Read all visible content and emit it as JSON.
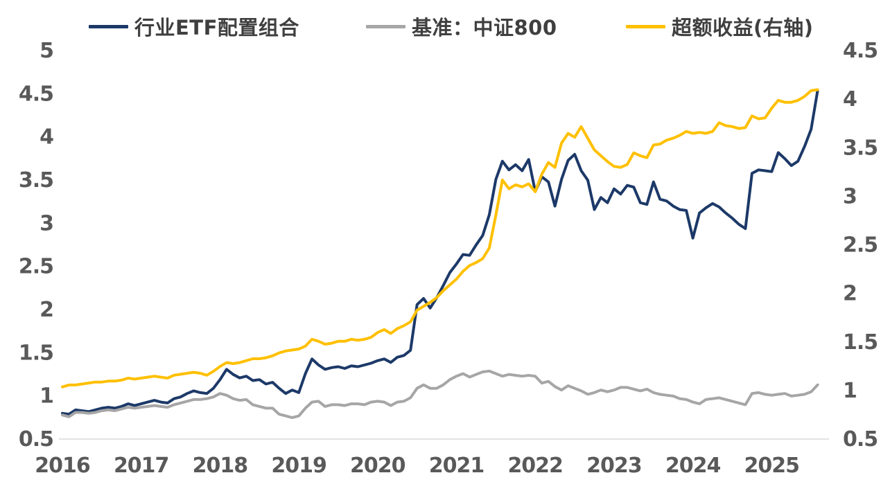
{
  "page": {
    "background": "#ffffff"
  },
  "chart_data": {
    "type": "line",
    "title": "",
    "x_unit": "month",
    "x_start": "2016-01",
    "x_end": "2025-08",
    "grid": false,
    "legend_position": "top",
    "x_axis": {
      "tick_labels": [
        "2016",
        "2017",
        "2018",
        "2019",
        "2020",
        "2021",
        "2022",
        "2023",
        "2024",
        "2025"
      ]
    },
    "left_axis": {
      "range": [
        0.5,
        5
      ],
      "tick_labels": [
        "5",
        "4.5",
        "4",
        "3.5",
        "3",
        "2.5",
        "2",
        "1.5",
        "1",
        "0.5"
      ]
    },
    "right_axis": {
      "range": [
        0.5,
        4.5
      ],
      "tick_labels": [
        "4.5",
        "4",
        "3.5",
        "3",
        "2.5",
        "2",
        "1.5",
        "1",
        "0.5"
      ]
    },
    "axis_line_color": "#d9d9d9",
    "tick_color": "#595959",
    "series": [
      {
        "name": "行业ETF配置组合",
        "axis": "left",
        "color": "#1c3968",
        "values": [
          0.79,
          0.78,
          0.83,
          0.82,
          0.81,
          0.83,
          0.85,
          0.86,
          0.85,
          0.87,
          0.9,
          0.88,
          0.9,
          0.92,
          0.94,
          0.92,
          0.91,
          0.96,
          0.98,
          1.02,
          1.05,
          1.03,
          1.02,
          1.08,
          1.18,
          1.3,
          1.24,
          1.2,
          1.22,
          1.17,
          1.18,
          1.13,
          1.15,
          1.08,
          1.02,
          1.06,
          1.03,
          1.25,
          1.42,
          1.35,
          1.3,
          1.32,
          1.33,
          1.31,
          1.34,
          1.33,
          1.35,
          1.37,
          1.4,
          1.42,
          1.38,
          1.44,
          1.46,
          1.52,
          2.05,
          2.12,
          2.01,
          2.13,
          2.27,
          2.42,
          2.52,
          2.63,
          2.62,
          2.74,
          2.85,
          3.09,
          3.5,
          3.71,
          3.61,
          3.67,
          3.6,
          3.73,
          3.36,
          3.53,
          3.47,
          3.19,
          3.5,
          3.72,
          3.79,
          3.6,
          3.49,
          3.15,
          3.29,
          3.23,
          3.39,
          3.33,
          3.43,
          3.41,
          3.23,
          3.21,
          3.47,
          3.27,
          3.25,
          3.19,
          3.15,
          3.14,
          2.82,
          3.11,
          3.17,
          3.22,
          3.18,
          3.11,
          3.05,
          2.98,
          2.93,
          3.57,
          3.61,
          3.6,
          3.59,
          3.81,
          3.74,
          3.66,
          3.71,
          3.88,
          4.08,
          4.53
        ]
      },
      {
        "name": "基准：中证800",
        "axis": "left",
        "color": "#a6a6a6",
        "values": [
          0.77,
          0.75,
          0.8,
          0.8,
          0.79,
          0.8,
          0.82,
          0.83,
          0.82,
          0.84,
          0.86,
          0.85,
          0.86,
          0.87,
          0.88,
          0.87,
          0.86,
          0.89,
          0.91,
          0.93,
          0.95,
          0.95,
          0.96,
          0.98,
          1.02,
          1.0,
          0.96,
          0.94,
          0.95,
          0.89,
          0.87,
          0.85,
          0.85,
          0.78,
          0.76,
          0.74,
          0.76,
          0.85,
          0.92,
          0.93,
          0.87,
          0.89,
          0.89,
          0.88,
          0.9,
          0.9,
          0.89,
          0.92,
          0.93,
          0.92,
          0.88,
          0.92,
          0.93,
          0.97,
          1.08,
          1.12,
          1.08,
          1.08,
          1.12,
          1.18,
          1.22,
          1.25,
          1.21,
          1.24,
          1.27,
          1.28,
          1.25,
          1.22,
          1.24,
          1.23,
          1.22,
          1.23,
          1.22,
          1.14,
          1.16,
          1.1,
          1.06,
          1.11,
          1.08,
          1.05,
          1.01,
          1.03,
          1.06,
          1.04,
          1.06,
          1.09,
          1.09,
          1.07,
          1.05,
          1.07,
          1.03,
          1.01,
          1.0,
          0.99,
          0.96,
          0.95,
          0.92,
          0.9,
          0.95,
          0.96,
          0.97,
          0.95,
          0.93,
          0.91,
          0.89,
          1.02,
          1.03,
          1.01,
          1.0,
          1.01,
          1.02,
          0.99,
          1.0,
          1.01,
          1.04,
          1.12
        ]
      },
      {
        "name": "超额收益(右轴)",
        "axis": "right",
        "color": "#ffc000",
        "values": [
          1.03,
          1.05,
          1.05,
          1.06,
          1.07,
          1.08,
          1.08,
          1.09,
          1.09,
          1.1,
          1.12,
          1.11,
          1.12,
          1.13,
          1.14,
          1.13,
          1.12,
          1.15,
          1.16,
          1.17,
          1.18,
          1.17,
          1.15,
          1.19,
          1.24,
          1.28,
          1.27,
          1.28,
          1.3,
          1.32,
          1.32,
          1.33,
          1.35,
          1.38,
          1.4,
          1.41,
          1.42,
          1.45,
          1.52,
          1.5,
          1.47,
          1.48,
          1.5,
          1.5,
          1.52,
          1.51,
          1.52,
          1.54,
          1.59,
          1.62,
          1.58,
          1.63,
          1.66,
          1.7,
          1.82,
          1.86,
          1.9,
          1.95,
          2.02,
          2.08,
          2.14,
          2.22,
          2.28,
          2.31,
          2.35,
          2.46,
          2.8,
          3.16,
          3.07,
          3.11,
          3.09,
          3.12,
          3.04,
          3.22,
          3.34,
          3.29,
          3.54,
          3.64,
          3.6,
          3.71,
          3.59,
          3.47,
          3.41,
          3.35,
          3.3,
          3.29,
          3.32,
          3.44,
          3.41,
          3.39,
          3.52,
          3.53,
          3.57,
          3.59,
          3.62,
          3.66,
          3.64,
          3.65,
          3.64,
          3.66,
          3.75,
          3.72,
          3.71,
          3.69,
          3.7,
          3.82,
          3.79,
          3.8,
          3.9,
          3.98,
          3.96,
          3.96,
          3.98,
          4.02,
          4.08,
          4.09
        ]
      }
    ]
  }
}
